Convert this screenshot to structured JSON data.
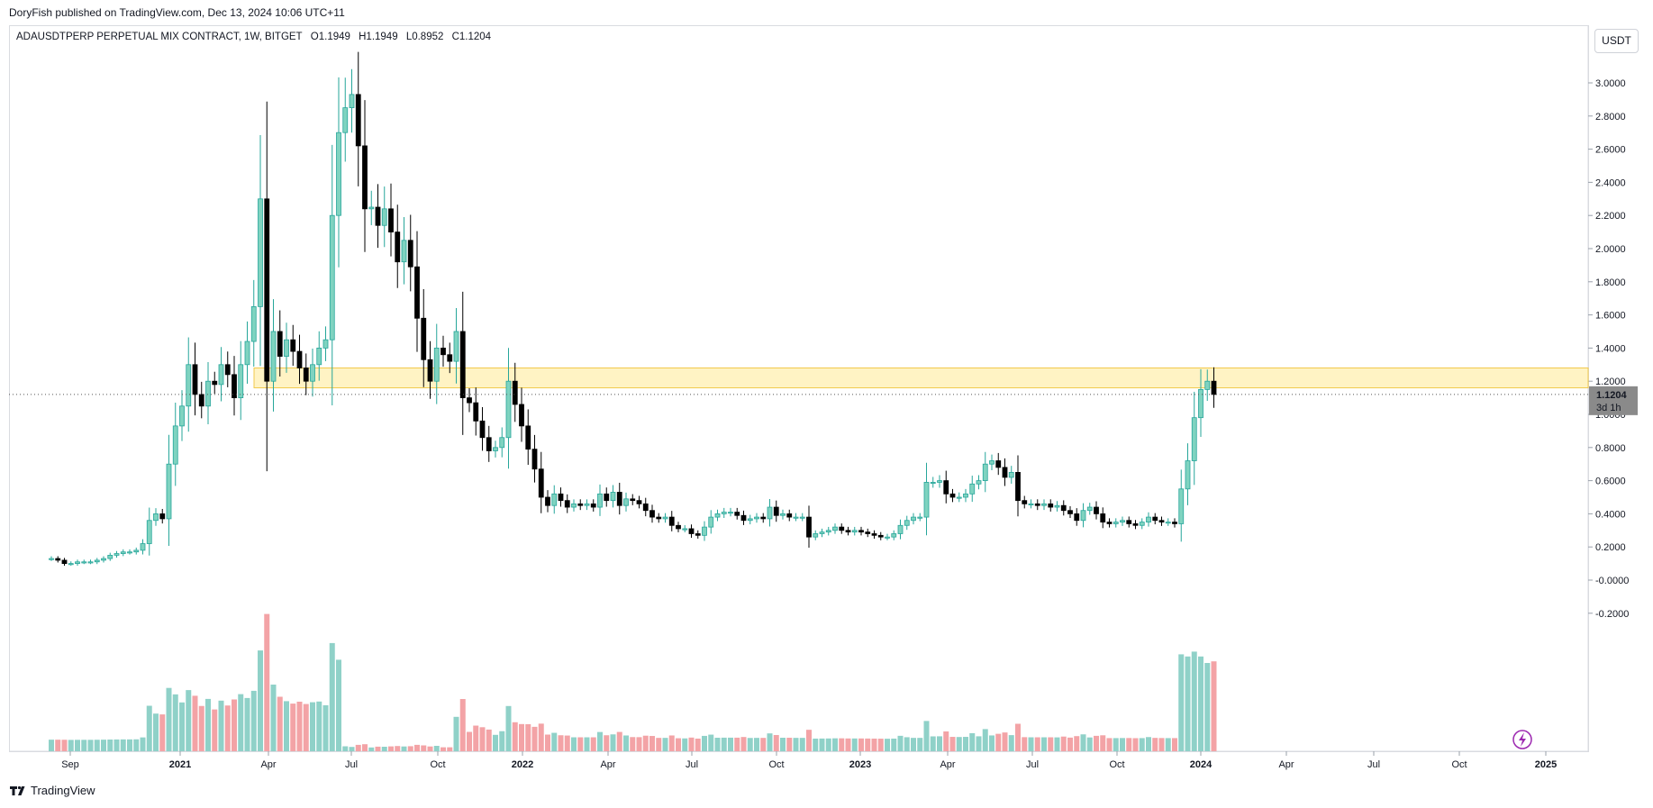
{
  "header": {
    "published": "DoryFish published on TradingView.com, Dec 13, 2024 10:06 UTC+11"
  },
  "symbol": {
    "name": "ADAUSDTPERP PERPETUAL MIX CONTRACT, 1W, BITGET",
    "open": "O1.1949",
    "high": "H1.1949",
    "low": "L0.8952",
    "close": "C1.1204"
  },
  "currency_button": "USDT",
  "last_price": "1.1204",
  "countdown": "3d 1h",
  "footer": {
    "brand": "TradingView"
  },
  "colors": {
    "up": "#26a69a",
    "up_fill": "#7fd3c0",
    "down": "#000000",
    "vol_up": "#8fd1c8",
    "vol_down": "#f3a3a6",
    "zone_fill": "#fff3c4",
    "zone_border": "#f2c94c",
    "purple": "#9c27b0"
  },
  "chart_data": {
    "type": "candlestick",
    "interval": "1W",
    "y_axis_ticks": [
      "3.0000",
      "2.8000",
      "2.6000",
      "2.4000",
      "2.2000",
      "2.0000",
      "1.8000",
      "1.6000",
      "1.4000",
      "1.2000",
      "1.0000",
      "0.8000",
      "0.6000",
      "0.4000",
      "0.2000",
      "-0.0000",
      "-0.2000"
    ],
    "ylim": [
      -0.36,
      3.36
    ],
    "x_axis_ticks": [
      "Sep",
      "2021",
      "Apr",
      "Jul",
      "Oct",
      "2022",
      "Apr",
      "Jul",
      "Oct",
      "2023",
      "Apr",
      "Jul",
      "Oct",
      "2024",
      "Apr",
      "Jul",
      "Oct",
      "2025"
    ],
    "resistance_zone": [
      1.16,
      1.28
    ],
    "current_price": 1.1204,
    "weekly_closes": [
      0.13,
      0.12,
      0.1,
      0.1,
      0.11,
      0.11,
      0.11,
      0.12,
      0.13,
      0.15,
      0.16,
      0.17,
      0.17,
      0.18,
      0.22,
      0.36,
      0.4,
      0.37,
      0.7,
      0.93,
      1.05,
      1.3,
      1.12,
      1.05,
      1.2,
      1.18,
      1.3,
      1.24,
      1.1,
      1.3,
      1.44,
      1.65,
      2.3,
      1.2,
      1.5,
      1.35,
      1.45,
      1.38,
      1.28,
      1.2,
      1.3,
      1.4,
      1.45,
      2.2,
      2.7,
      2.85,
      2.93,
      2.62,
      2.24,
      2.25,
      2.14,
      2.24,
      2.1,
      1.92,
      2.05,
      1.89,
      1.58,
      1.33,
      1.2,
      1.4,
      1.36,
      1.32,
      1.5,
      1.1,
      1.07,
      0.96,
      0.86,
      0.78,
      0.8,
      0.86,
      1.2,
      1.06,
      0.93,
      0.79,
      0.67,
      0.5,
      0.45,
      0.52,
      0.48,
      0.44,
      0.46,
      0.45,
      0.46,
      0.44,
      0.52,
      0.48,
      0.53,
      0.45,
      0.49,
      0.48,
      0.46,
      0.42,
      0.38,
      0.37,
      0.38,
      0.33,
      0.31,
      0.31,
      0.28,
      0.27,
      0.32,
      0.38,
      0.4,
      0.41,
      0.41,
      0.39,
      0.36,
      0.37,
      0.38,
      0.37,
      0.44,
      0.39,
      0.4,
      0.38,
      0.38,
      0.38,
      0.26,
      0.28,
      0.29,
      0.3,
      0.32,
      0.3,
      0.29,
      0.3,
      0.29,
      0.28,
      0.27,
      0.26,
      0.26,
      0.28,
      0.33,
      0.36,
      0.38,
      0.38,
      0.59,
      0.59,
      0.6,
      0.52,
      0.5,
      0.5,
      0.52,
      0.58,
      0.6,
      0.7,
      0.72,
      0.68,
      0.62,
      0.65,
      0.48,
      0.46,
      0.46,
      0.45,
      0.46,
      0.44,
      0.45,
      0.42,
      0.4,
      0.36,
      0.42,
      0.44,
      0.4,
      0.35,
      0.34,
      0.35,
      0.36,
      0.34,
      0.33,
      0.35,
      0.38,
      0.36,
      0.35,
      0.35,
      0.34,
      0.55,
      0.72,
      0.98,
      1.15,
      1.2,
      1.12
    ]
  }
}
